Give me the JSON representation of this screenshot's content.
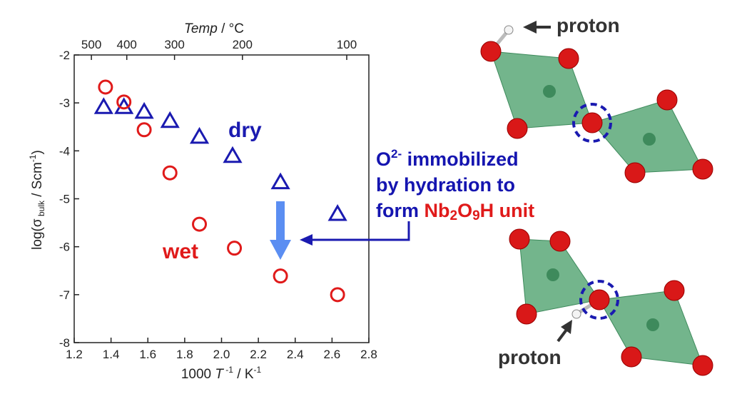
{
  "chart_data": {
    "type": "scatter",
    "xlabel": [
      "1000 ",
      "T",
      " -1",
      " / K",
      "-1"
    ],
    "ylabel": [
      "log(σ",
      " bulk",
      " / Scm",
      "-1",
      ")"
    ],
    "x2label": [
      "Temp",
      " / °C"
    ],
    "xlim": [
      1.2,
      2.8
    ],
    "ylim": [
      -8,
      -2
    ],
    "xticks": [
      1.2,
      1.4,
      1.6,
      1.8,
      {
        "value": 2,
        "label": "2.0"
      },
      2.2,
      2.4,
      2.6,
      2.8
    ],
    "yticks": [
      -8,
      -7,
      -6,
      -5,
      -4,
      -3,
      -2
    ],
    "x2ticks": [
      500,
      400,
      300,
      200,
      100
    ],
    "series": [
      {
        "name": "dry",
        "color": "#1a1ab0",
        "marker": "triangle",
        "x": [
          1.36,
          1.47,
          1.58,
          1.72,
          1.88,
          2.06,
          2.32,
          2.63
        ],
        "values": [
          -3.09,
          -3.09,
          -3.19,
          -3.38,
          -3.71,
          -4.11,
          -4.66,
          -5.32
        ]
      },
      {
        "name": "wet",
        "color": "#e01a1a",
        "marker": "circle",
        "x": [
          1.37,
          1.47,
          1.58,
          1.72,
          1.88,
          2.07,
          2.32,
          2.63
        ],
        "values": [
          -2.67,
          -2.98,
          -3.56,
          -4.46,
          -5.53,
          -6.03,
          -6.61,
          -7.0
        ]
      }
    ],
    "annotation": {
      "line1": [
        "O",
        "2-",
        " immobilized"
      ],
      "line2": "by hydration to",
      "line3": [
        "form ",
        "Nb",
        "2",
        "O",
        "9",
        "H unit"
      ]
    },
    "proton_labels": [
      "proton",
      "proton"
    ]
  }
}
